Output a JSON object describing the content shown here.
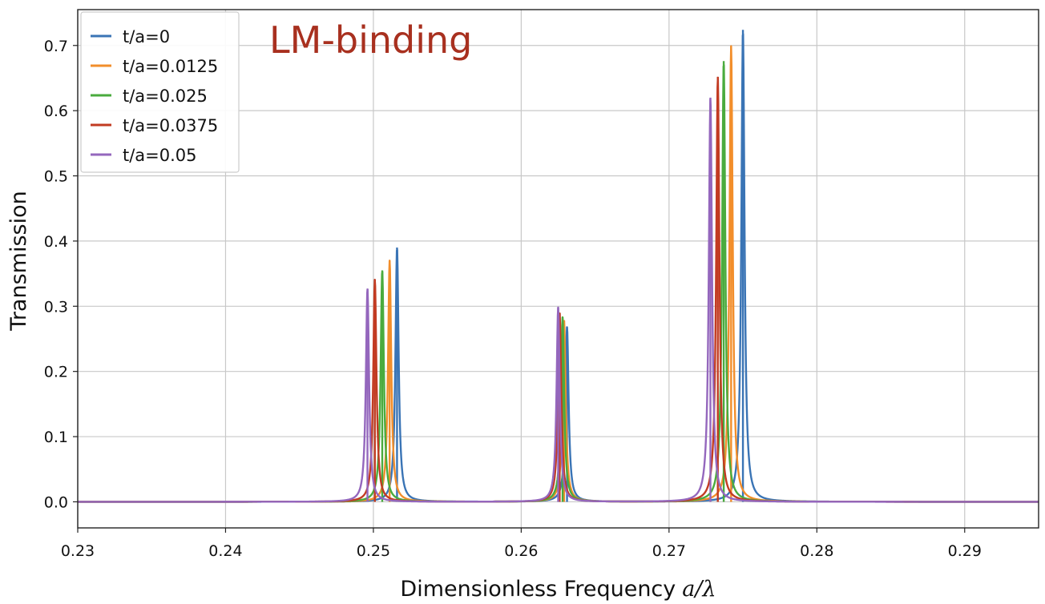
{
  "chart_data": {
    "type": "line",
    "title": "",
    "annotation": "LM-binding",
    "xlabel": "Dimensionless Frequency",
    "xlabel_math": "a/λ",
    "ylabel": "Transmission",
    "xlim": [
      0.23,
      0.295
    ],
    "ylim": [
      -0.04,
      0.755
    ],
    "xticks": [
      0.23,
      0.24,
      0.25,
      0.26,
      0.27,
      0.28,
      0.29
    ],
    "xtick_labels": [
      "0.23",
      "0.24",
      "0.25",
      "0.26",
      "0.27",
      "0.28",
      "0.29"
    ],
    "yticks": [
      0.0,
      0.1,
      0.2,
      0.3,
      0.4,
      0.5,
      0.6,
      0.7
    ],
    "ytick_labels": [
      "0.0",
      "0.1",
      "0.2",
      "0.3",
      "0.4",
      "0.5",
      "0.6",
      "0.7"
    ],
    "grid": true,
    "legend_position": "top-left",
    "series": [
      {
        "name": "t/a=0",
        "color": "#3a74b5",
        "peaks": [
          {
            "x": 0.2516,
            "y": 0.39
          },
          {
            "x": 0.2631,
            "y": 0.268
          },
          {
            "x": 0.275,
            "y": 0.724
          }
        ]
      },
      {
        "name": "t/a=0.0125",
        "color": "#f28e2b",
        "peaks": [
          {
            "x": 0.2511,
            "y": 0.37
          },
          {
            "x": 0.2629,
            "y": 0.278
          },
          {
            "x": 0.2742,
            "y": 0.699
          }
        ]
      },
      {
        "name": "t/a=0.025",
        "color": "#4aab3e",
        "peaks": [
          {
            "x": 0.2506,
            "y": 0.355
          },
          {
            "x": 0.2628,
            "y": 0.283
          },
          {
            "x": 0.2737,
            "y": 0.676
          }
        ]
      },
      {
        "name": "t/a=0.0375",
        "color": "#c23b22",
        "peaks": [
          {
            "x": 0.2501,
            "y": 0.341
          },
          {
            "x": 0.2626,
            "y": 0.29
          },
          {
            "x": 0.2733,
            "y": 0.652
          }
        ]
      },
      {
        "name": "t/a=0.05",
        "color": "#9467bd",
        "peaks": [
          {
            "x": 0.2496,
            "y": 0.327
          },
          {
            "x": 0.2625,
            "y": 0.298
          },
          {
            "x": 0.2728,
            "y": 0.62
          }
        ]
      }
    ]
  }
}
